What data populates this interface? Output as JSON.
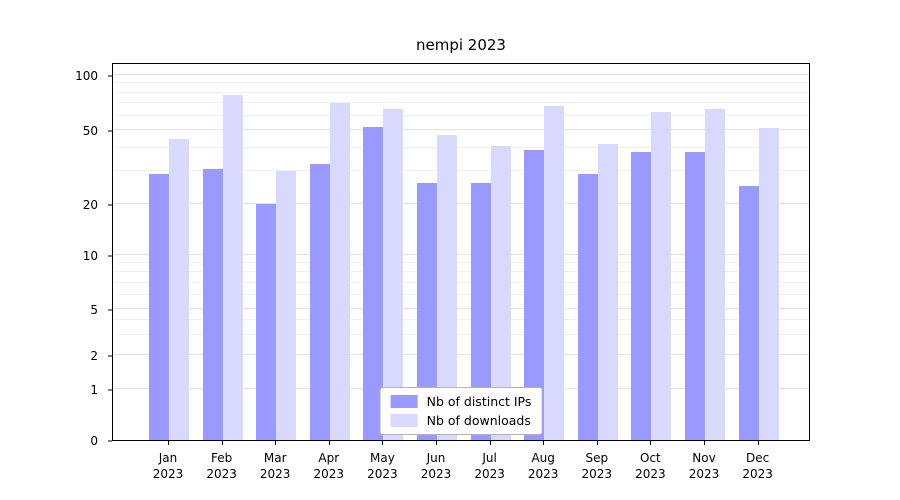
{
  "chart_data": {
    "type": "bar",
    "title": "nempi 2023",
    "categories": [
      "Jan",
      "Feb",
      "Mar",
      "Apr",
      "May",
      "Jun",
      "Jul",
      "Aug",
      "Sep",
      "Oct",
      "Nov",
      "Dec"
    ],
    "category_year": "2023",
    "series": [
      {
        "name": "Nb of distinct IPs",
        "color": "#9999ff",
        "values": [
          29,
          31,
          20,
          33,
          52,
          26,
          26,
          39,
          29,
          38,
          38,
          25
        ]
      },
      {
        "name": "Nb of downloads",
        "color": "#d9d9ff",
        "values": [
          45,
          78,
          30,
          70,
          65,
          47,
          41,
          68,
          42,
          63,
          65,
          51
        ]
      }
    ],
    "yscale": "symlog",
    "yticks": [
      0,
      1,
      2,
      5,
      10,
      20,
      50,
      100
    ],
    "ylim": [
      0,
      118
    ],
    "xlabel": "",
    "ylabel": "",
    "grid": true,
    "legend_position": "lower center inside"
  }
}
